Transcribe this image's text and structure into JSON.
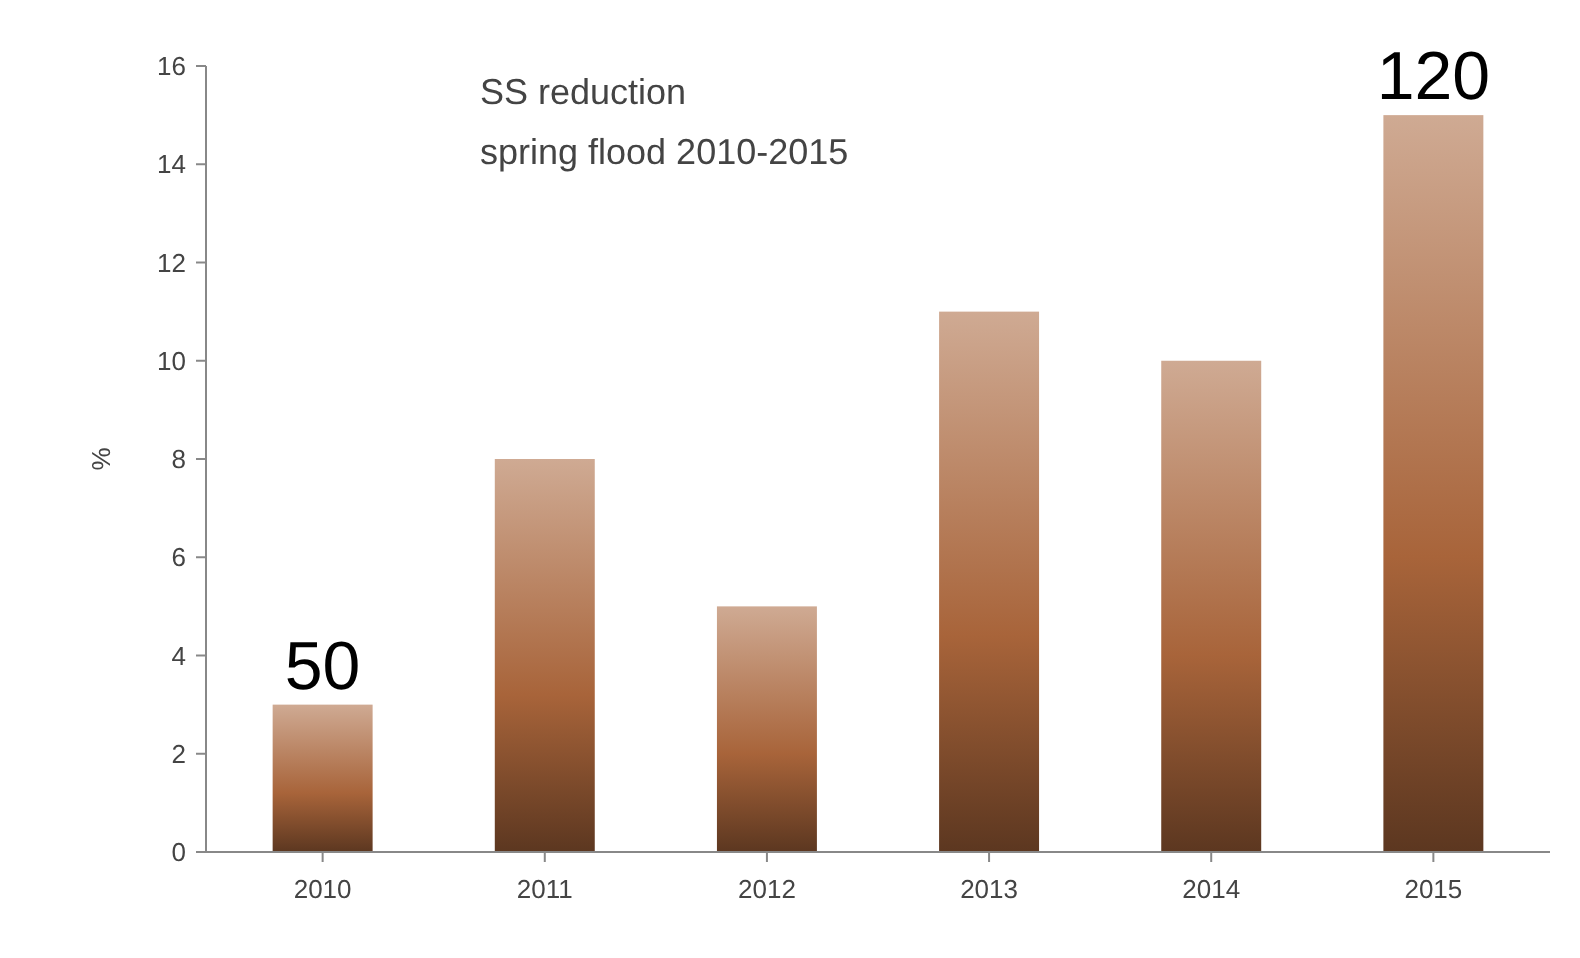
{
  "chart_data": {
    "type": "bar",
    "title": "SS reduction",
    "subtitle": "spring flood 2010-2015",
    "ylabel": "%",
    "categories": [
      "2010",
      "2011",
      "2012",
      "2013",
      "2014",
      "2015"
    ],
    "values": [
      3,
      8,
      5,
      11,
      10,
      15
    ],
    "color": "#a8643a",
    "ylim": [
      0,
      16
    ],
    "yticks": [
      0,
      2,
      4,
      6,
      8,
      10,
      12,
      14,
      16
    ],
    "grid": false,
    "annotations": [
      {
        "text": "50",
        "x": "2010",
        "y": 3
      },
      {
        "text": "120",
        "x": "2015",
        "y": 15
      }
    ]
  }
}
